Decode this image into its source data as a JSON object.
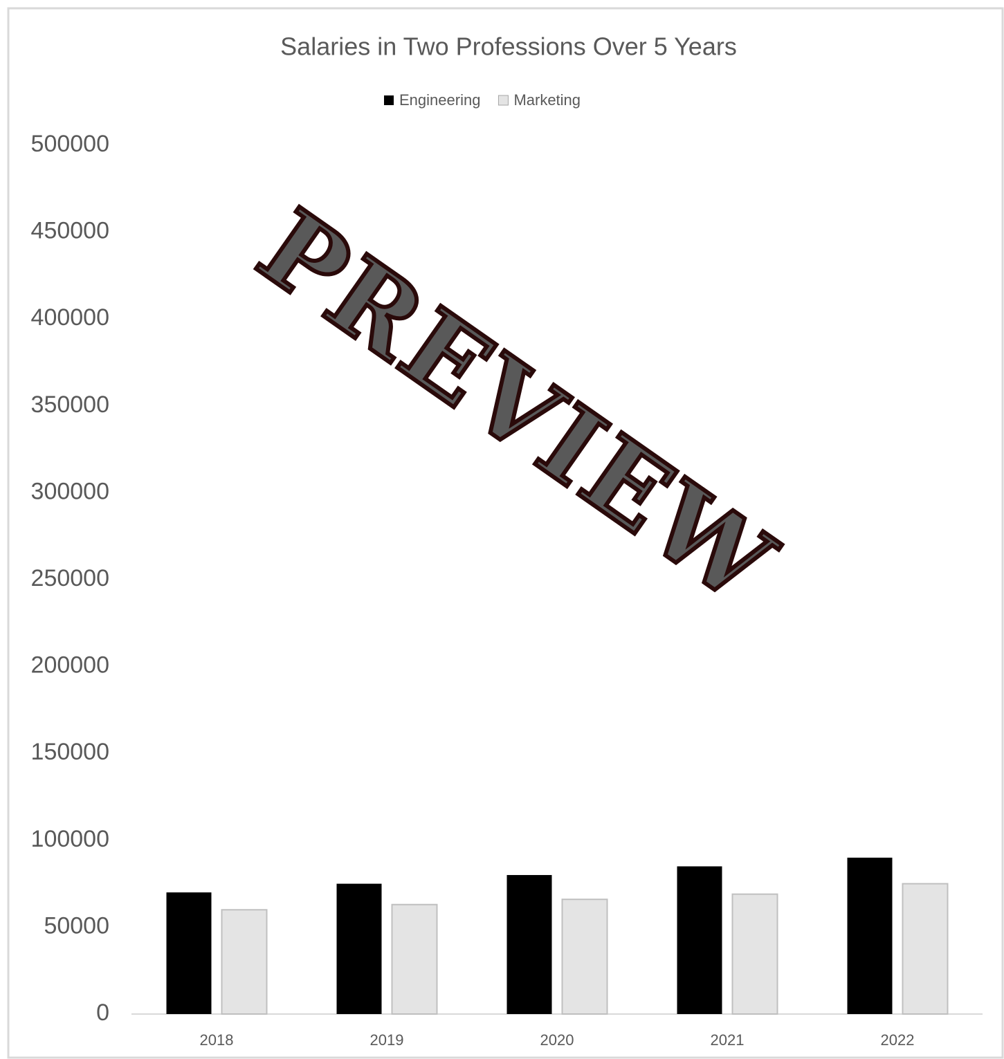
{
  "chart_data": {
    "type": "bar",
    "title": "Salaries in Two Professions Over 5 Years",
    "categories": [
      "2018",
      "2019",
      "2020",
      "2021",
      "2022"
    ],
    "series": [
      {
        "name": "Engineering",
        "color": "#000000",
        "values": [
          70000,
          75000,
          80000,
          85000,
          90000
        ]
      },
      {
        "name": "Marketing",
        "color": "#e4e4e4",
        "values": [
          60000,
          63000,
          66000,
          69000,
          75000
        ]
      }
    ],
    "ylim": [
      0,
      500000
    ],
    "yticks": [
      0,
      50000,
      100000,
      150000,
      200000,
      250000,
      300000,
      350000,
      400000,
      450000,
      500000
    ],
    "grid": false,
    "legend": "top",
    "watermark": "PREVIEW"
  }
}
